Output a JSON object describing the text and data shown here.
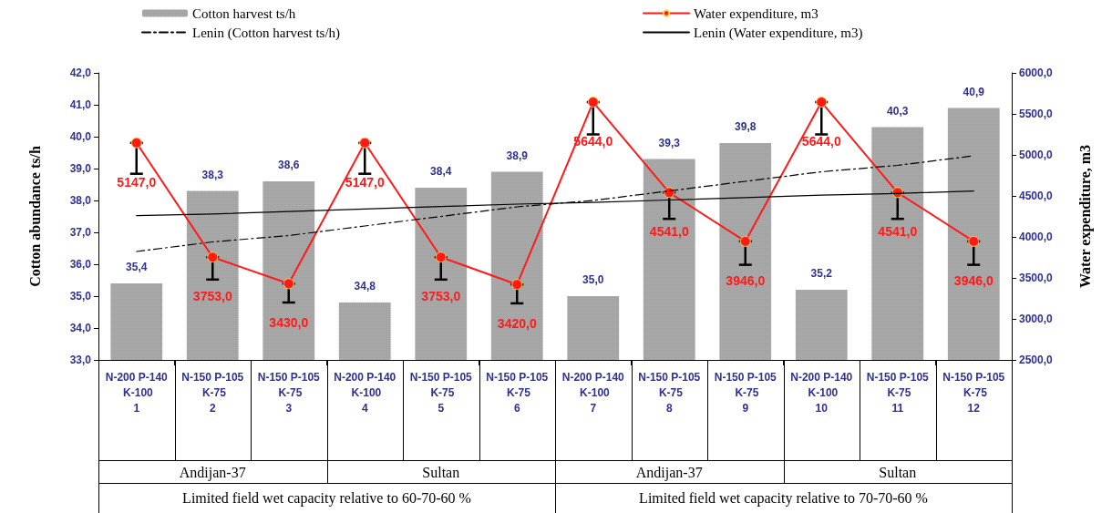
{
  "chart_data": {
    "type": "bar",
    "categories": [
      "N-200 P-140 K-100\n1",
      "N-150 P-105 K-75\n2",
      "N-150 P-105 K-75\n3",
      "N-200 P-140 K-100\n4",
      "N-150 P-105 K-75\n5",
      "N-150 P-105 K-75\n6",
      "N-200 P-140 K-100\n7",
      "N-150 P-105 K-75\n8",
      "N-150 P-105 K-75\n9",
      "N-200 P-140 K-100\n10",
      "N-150 P-105 K-75\n11",
      "N-150 P-105 K-75\n12"
    ],
    "series": [
      {
        "name": "Cotton harvest ts/h",
        "color": "#a9a9a9",
        "values": [
          35.4,
          38.3,
          38.6,
          34.8,
          38.4,
          38.9,
          35.0,
          39.3,
          39.8,
          35.2,
          40.3,
          40.9
        ],
        "value_labels": [
          "35,4",
          "38,3",
          "38,6",
          "34,8",
          "38,4",
          "38,9",
          "35,0",
          "39,3",
          "39,8",
          "35,2",
          "40,3",
          "40,9"
        ]
      },
      {
        "name": "Water expenditure, m3",
        "type": "line",
        "axis": "y2",
        "color": "#ff1a1a",
        "marker": "circle",
        "values": [
          5147,
          3753,
          3430,
          5147,
          3753,
          3420,
          5644,
          4541,
          3946,
          5644,
          4541,
          3946
        ],
        "value_labels": [
          "5147,0",
          "3753,0",
          "3430,0",
          "5147,0",
          "3753,0",
          "3420,0",
          "5644,0",
          "4541,0",
          "3946,0",
          "5644,0",
          "4541,0",
          "3946,0"
        ],
        "errors": [
          [
            4770,
            5147
          ],
          [
            3480,
            3753
          ],
          [
            3200,
            3430
          ],
          [
            4770,
            5147
          ],
          [
            3480,
            3753
          ],
          [
            3190,
            3420
          ],
          [
            5250,
            5644
          ],
          [
            4220,
            4541
          ],
          [
            3660,
            3946
          ],
          [
            5250,
            5644
          ],
          [
            4220,
            4541
          ],
          [
            3660,
            3946
          ]
        ]
      },
      {
        "name": "Lenin (Cotton harvest ts/h)",
        "type": "line",
        "color": "#000000",
        "marker": "none",
        "line_style": "dashed",
        "values": [
          36.4,
          36.7,
          36.9,
          37.2,
          37.5,
          37.8,
          38.0,
          38.3,
          38.6,
          38.9,
          39.1,
          39.4
        ]
      },
      {
        "name": "Lenin (Water expenditure, m3)",
        "type": "line",
        "axis": "y2",
        "color": "#000000",
        "marker": "none",
        "line_style": "solid",
        "values": [
          4260,
          4280,
          4310,
          4340,
          4370,
          4400,
          4420,
          4450,
          4480,
          4510,
          4530,
          4560
        ]
      }
    ],
    "ylabel": "Cotton abundance ts/h",
    "y2label": "Water expenditure, m3",
    "ylim": [
      33,
      42
    ],
    "yticks": [
      {
        "value": 33,
        "label": "33,0"
      },
      {
        "value": 34,
        "label": "34,0"
      },
      {
        "value": 35,
        "label": "35,0"
      },
      {
        "value": 36,
        "label": "36,0"
      },
      {
        "value": 37,
        "label": "37,0"
      },
      {
        "value": 38,
        "label": "38,0"
      },
      {
        "value": 39,
        "label": "39,0"
      },
      {
        "value": 40,
        "label": "40,0"
      },
      {
        "value": 41,
        "label": "41,0"
      },
      {
        "value": 42,
        "label": "42,0"
      }
    ],
    "y2lim": [
      2500,
      6000
    ],
    "y2ticks": [
      {
        "value": 2500,
        "label": "2500,0"
      },
      {
        "value": 3000,
        "label": "3000,0"
      },
      {
        "value": 3500,
        "label": "3500,0"
      },
      {
        "value": 4000,
        "label": "4000,0"
      },
      {
        "value": 4500,
        "label": "4500,0"
      },
      {
        "value": 5000,
        "label": "5000,0"
      },
      {
        "value": 5500,
        "label": "5500,0"
      },
      {
        "value": 6000,
        "label": "6000,0"
      }
    ],
    "annotations": [
      "Andijan-37",
      "Sultan",
      "Andijan-37",
      "Sultan",
      "Limited field wet capacity relative to 60-70-60 %",
      "Limited field wet capacity relative to 70-70-60 %"
    ],
    "grid": false,
    "legend": "top"
  }
}
